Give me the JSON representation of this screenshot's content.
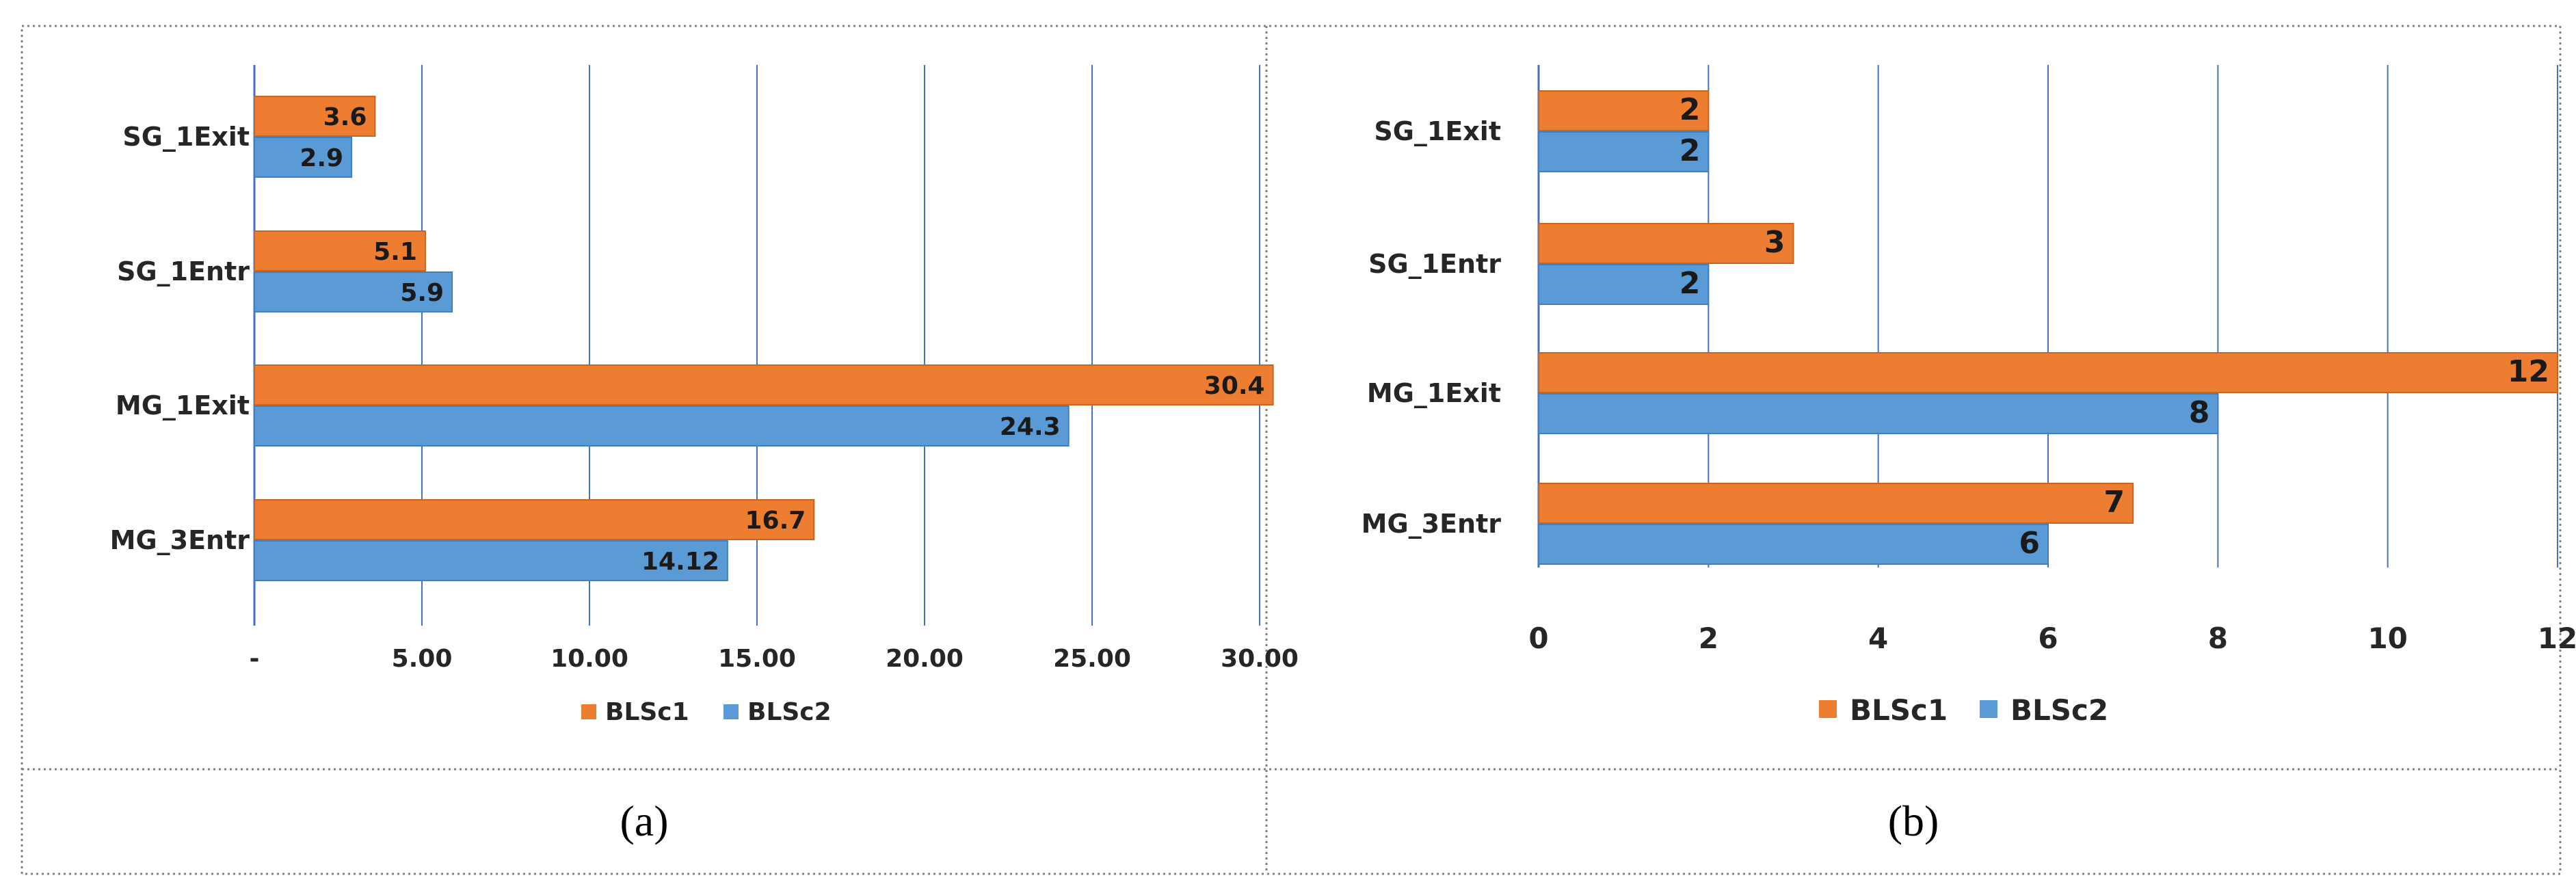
{
  "colors": {
    "series1": "#ED7D31",
    "series2": "#5B9BD5",
    "grid": "#4472C4",
    "frame": "#808080"
  },
  "panels": [
    {
      "caption": "(a)"
    },
    {
      "caption": "(b)"
    }
  ],
  "chart_data": [
    {
      "type": "bar",
      "orientation": "horizontal",
      "categories": [
        "SG_1Exit",
        "SG_1Entr",
        "MG_1Exit",
        "MG_3Entr"
      ],
      "series": [
        {
          "name": "BLSc1",
          "values": [
            3.6,
            5.1,
            30.4,
            16.7
          ],
          "labels": [
            "3.6",
            "5.1",
            "30.4",
            "16.7"
          ]
        },
        {
          "name": "BLSc2",
          "values": [
            2.9,
            5.9,
            24.3,
            14.12
          ],
          "labels": [
            "2.9",
            "5.9",
            "24.3",
            "14.12"
          ]
        }
      ],
      "x_ticks": [
        0,
        5,
        10,
        15,
        20,
        25,
        30
      ],
      "x_tick_labels": [
        "-",
        "5.00",
        "10.00",
        "15.00",
        "20.00",
        "25.00",
        "30.00"
      ],
      "xlim": [
        0,
        30
      ],
      "grid": true,
      "legend": "bottom",
      "title": "",
      "xlabel": "",
      "ylabel": ""
    },
    {
      "type": "bar",
      "orientation": "horizontal",
      "categories": [
        "SG_1Exit",
        "SG_1Entr",
        "MG_1Exit",
        "MG_3Entr"
      ],
      "series": [
        {
          "name": "BLSc1",
          "values": [
            2,
            3,
            12,
            7
          ],
          "labels": [
            "2",
            "3",
            "12",
            "7"
          ]
        },
        {
          "name": "BLSc2",
          "values": [
            2,
            2,
            8,
            6
          ],
          "labels": [
            "2",
            "2",
            "8",
            "6"
          ]
        }
      ],
      "x_ticks": [
        0,
        2,
        4,
        6,
        8,
        10,
        12
      ],
      "x_tick_labels": [
        "0",
        "2",
        "4",
        "6",
        "8",
        "10",
        "12"
      ],
      "xlim": [
        0,
        12
      ],
      "grid": true,
      "legend": "bottom",
      "title": "",
      "xlabel": "",
      "ylabel": ""
    }
  ]
}
